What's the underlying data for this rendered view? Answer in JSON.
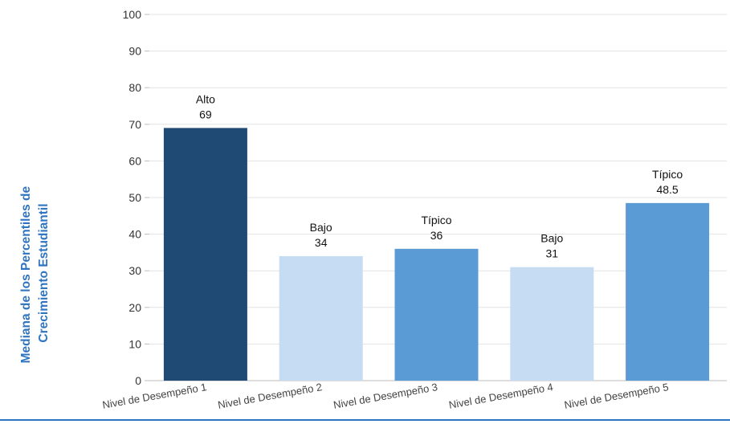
{
  "chart_data": {
    "type": "bar",
    "title": "",
    "xlabel": "",
    "ylabel": "Mediana de los Percentiles de Crecimiento Estudiantil",
    "ylabel_lines": [
      "Mediana de los Percentiles de",
      "Crecimiento Estudiantil"
    ],
    "ylim": [
      0,
      100
    ],
    "y_ticks": [
      0,
      10,
      20,
      30,
      40,
      50,
      60,
      70,
      80,
      90,
      100
    ],
    "grid": true,
    "categories": [
      "Nivel de Desempeño 1",
      "Nivel de Desempeño 2",
      "Nivel de Desempeño 3",
      "Nivel de Desempeño 4",
      "Nivel de Desempeño 5"
    ],
    "values": [
      69,
      34,
      36,
      31,
      48.5
    ],
    "value_labels": [
      "69",
      "34",
      "36",
      "31",
      "48.5"
    ],
    "annotations": [
      "Alto",
      "Bajo",
      "Típico",
      "Bajo",
      "Típico"
    ],
    "bar_colors": [
      "#1f4a73",
      "#c6dcf2",
      "#5b9bd5",
      "#c6dcf2",
      "#5b9bd5"
    ],
    "ylabel_color": "#2f74c0"
  }
}
